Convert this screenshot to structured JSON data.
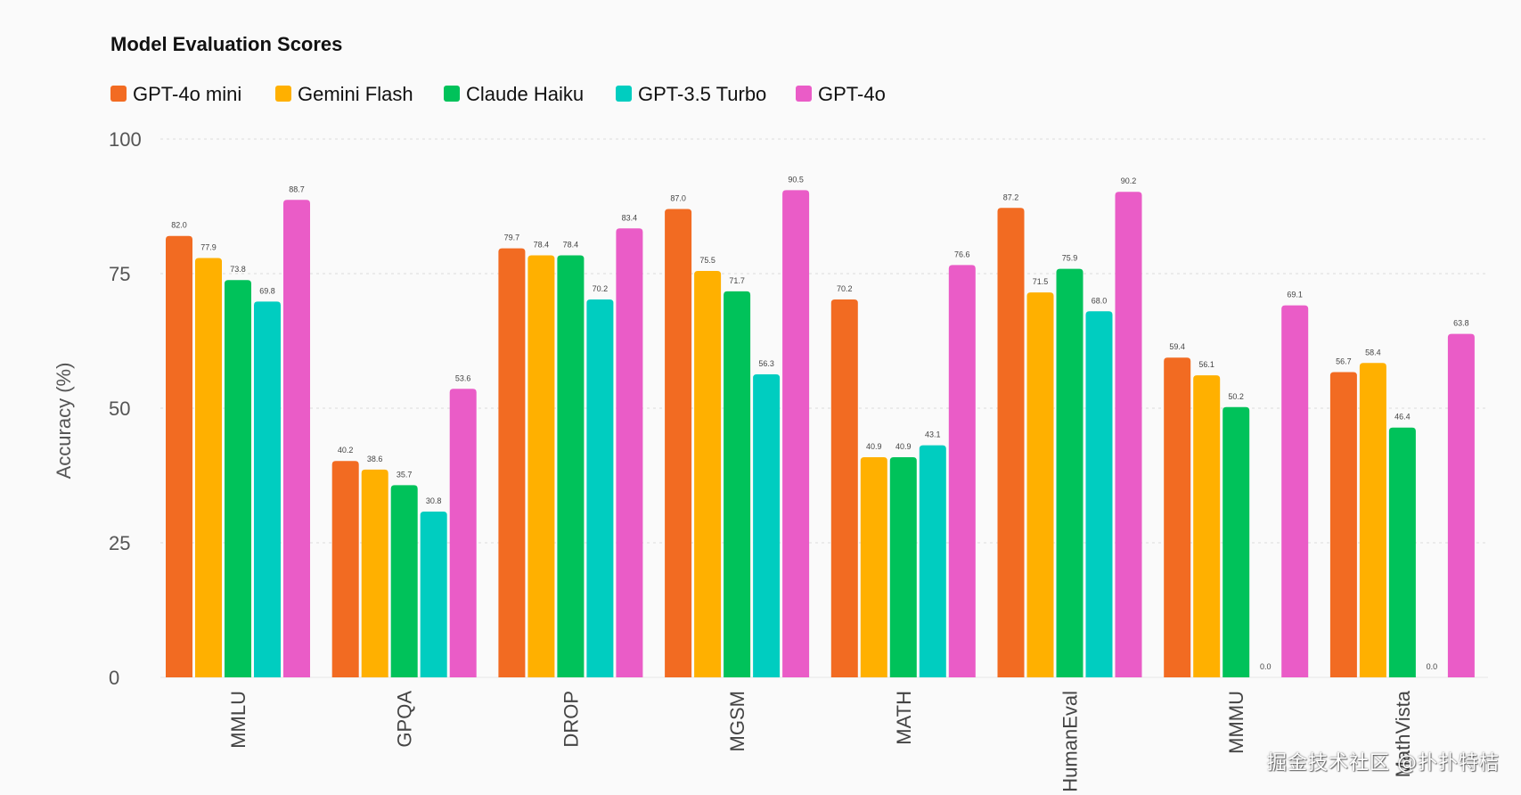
{
  "chart_data": {
    "type": "bar",
    "title": "Model Evaluation Scores",
    "ylabel": "Accuracy (%)",
    "xlabel": "",
    "ylim": [
      0,
      100
    ],
    "yticks": [
      0,
      25,
      50,
      75,
      100
    ],
    "grid": true,
    "legend_position": "top-left",
    "categories": [
      "MMLU",
      "GPQA",
      "DROP",
      "MGSM",
      "MATH",
      "HumanEval",
      "MMMU",
      "MathVista"
    ],
    "series": [
      {
        "name": "GPT-4o mini",
        "color": "#f26b22",
        "values": [
          82.0,
          40.2,
          79.7,
          87.0,
          70.2,
          87.2,
          59.4,
          56.7
        ]
      },
      {
        "name": "Gemini Flash",
        "color": "#ffb000",
        "values": [
          77.9,
          38.6,
          78.4,
          75.5,
          40.9,
          71.5,
          56.1,
          58.4
        ]
      },
      {
        "name": "Claude Haiku",
        "color": "#00c25a",
        "values": [
          73.8,
          35.7,
          78.4,
          71.7,
          40.9,
          75.9,
          50.2,
          46.4
        ]
      },
      {
        "name": "GPT-3.5 Turbo",
        "color": "#00cdc0",
        "values": [
          69.8,
          30.8,
          70.2,
          56.3,
          43.1,
          68.0,
          0.0,
          0.0
        ]
      },
      {
        "name": "GPT-4o",
        "color": "#ea5cc7",
        "values": [
          88.7,
          53.6,
          83.4,
          90.5,
          76.6,
          90.2,
          69.1,
          63.8
        ]
      }
    ]
  },
  "watermark": "掘金技术社区 @扑扑特桔"
}
